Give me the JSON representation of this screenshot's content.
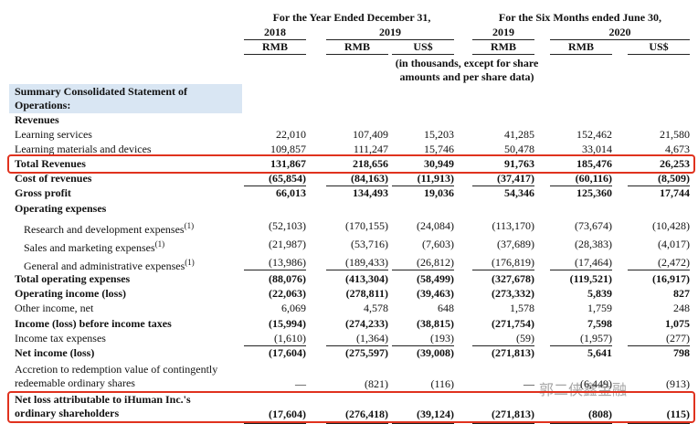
{
  "header": {
    "period_year": "For the Year Ended December 31,",
    "period_six": "For the Six Months ended June 30,",
    "years": [
      "2018",
      "2019",
      "2019",
      "2020"
    ],
    "currencies": [
      "RMB",
      "RMB",
      "US$",
      "RMB",
      "RMB",
      "US$"
    ],
    "note": "(in thousands, except for share amounts and per share data)"
  },
  "rows": [
    {
      "label": "Summary Consolidated Statement of Operations:"
    },
    {
      "label": "Revenues"
    },
    {
      "label": "Learning services",
      "values": [
        "22,010",
        "107,409",
        "15,203",
        "41,285",
        "152,462",
        "21,580"
      ]
    },
    {
      "label": "Learning materials and devices",
      "values": [
        "109,857",
        "111,247",
        "15,746",
        "50,478",
        "33,014",
        "4,673"
      ]
    },
    {
      "label": "Total Revenues",
      "values": [
        "131,867",
        "218,656",
        "30,949",
        "91,763",
        "185,476",
        "26,253"
      ]
    },
    {
      "label": "Cost of revenues",
      "values": [
        "(65,854)",
        "(84,163)",
        "(11,913)",
        "(37,417)",
        "(60,116)",
        "(8,509)"
      ]
    },
    {
      "label": "Gross profit",
      "values": [
        "66,013",
        "134,493",
        "19,036",
        "54,346",
        "125,360",
        "17,744"
      ]
    },
    {
      "label": "Operating expenses"
    },
    {
      "label": "Research and development expenses",
      "footnote": "(1)",
      "values": [
        "(52,103)",
        "(170,155)",
        "(24,084)",
        "(113,170)",
        "(73,674)",
        "(10,428)"
      ]
    },
    {
      "label": "Sales and marketing expenses",
      "footnote": "(1)",
      "values": [
        "(21,987)",
        "(53,716)",
        "(7,603)",
        "(37,689)",
        "(28,383)",
        "(4,017)"
      ]
    },
    {
      "label": "General and administrative expenses",
      "footnote": "(1)",
      "values": [
        "(13,986)",
        "(189,433)",
        "(26,812)",
        "(176,819)",
        "(17,464)",
        "(2,472)"
      ]
    },
    {
      "label": "Total operating expenses",
      "values": [
        "(88,076)",
        "(413,304)",
        "(58,499)",
        "(327,678)",
        "(119,521)",
        "(16,917)"
      ]
    },
    {
      "label": "Operating income (loss)",
      "values": [
        "(22,063)",
        "(278,811)",
        "(39,463)",
        "(273,332)",
        "5,839",
        "827"
      ]
    },
    {
      "label": "Other income, net",
      "values": [
        "6,069",
        "4,578",
        "648",
        "1,578",
        "1,759",
        "248"
      ]
    },
    {
      "label": "Income (loss) before income taxes",
      "values": [
        "(15,994)",
        "(274,233)",
        "(38,815)",
        "(271,754)",
        "7,598",
        "1,075"
      ]
    },
    {
      "label": "Income tax expenses",
      "values": [
        "(1,610)",
        "(1,364)",
        "(193)",
        "(59)",
        "(1,957)",
        "(277)"
      ]
    },
    {
      "label": "Net income (loss)",
      "values": [
        "(17,604)",
        "(275,597)",
        "(39,008)",
        "(271,813)",
        "5,641",
        "798"
      ]
    },
    {
      "label": "Accretion to redemption value of contingently redeemable ordinary shares",
      "values": [
        "—",
        "(821)",
        "(116)",
        "—",
        "(6,449)",
        "(913)"
      ]
    },
    {
      "label": "Net loss attributable to iHuman Inc.'s ordinary shareholders",
      "values": [
        "(17,604)",
        "(276,418)",
        "(39,124)",
        "(271,813)",
        "(808)",
        "(115)"
      ]
    }
  ],
  "watermark": "郭二侠鑫金融"
}
